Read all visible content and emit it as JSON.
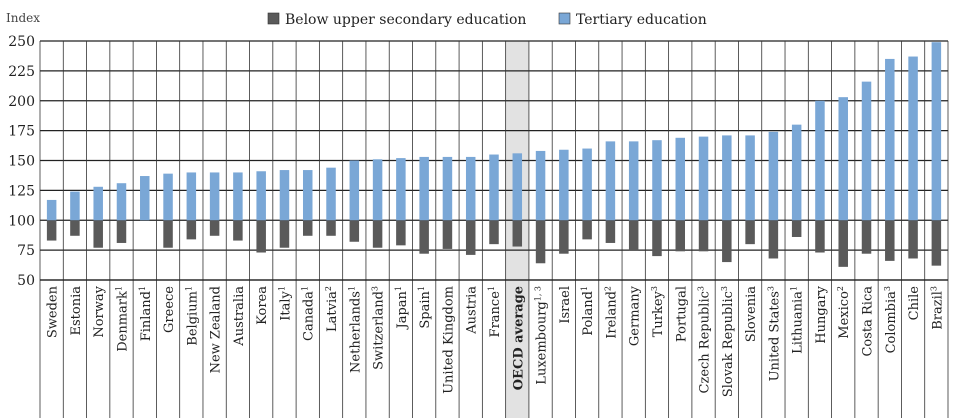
{
  "chart_data": {
    "type": "bar",
    "ylabel": "Index",
    "ylim": [
      50,
      250
    ],
    "yticks": [
      50,
      75,
      100,
      125,
      150,
      175,
      200,
      225,
      250
    ],
    "baseline": 100,
    "grid": true,
    "legend_position": "top",
    "highlight_category": "OECD average",
    "series": [
      {
        "name": "Below upper secondary education",
        "color": "#5a5a5a",
        "values": [
          83,
          87,
          77,
          81,
          null,
          77,
          84,
          87,
          83,
          73,
          77,
          87,
          87,
          82,
          77,
          79,
          72,
          76,
          71,
          80,
          78,
          64,
          72,
          84,
          81,
          75,
          70,
          74,
          74,
          65,
          80,
          68,
          86,
          73,
          61,
          72,
          66,
          68,
          62
        ]
      },
      {
        "name": "Tertiary education",
        "color": "#7aa7d6",
        "values": [
          117,
          124,
          128,
          131,
          137,
          139,
          140,
          140,
          140,
          141,
          142,
          142,
          144,
          150,
          151,
          152,
          153,
          153,
          153,
          155,
          156,
          158,
          159,
          160,
          166,
          166,
          167,
          169,
          170,
          171,
          171,
          174,
          180,
          200,
          203,
          216,
          235,
          237,
          249
        ]
      }
    ],
    "categories": [
      {
        "label": "Sweden",
        "note": ""
      },
      {
        "label": "Estonia",
        "note": ""
      },
      {
        "label": "Norway",
        "note": ""
      },
      {
        "label": "Denmark",
        "note": "1"
      },
      {
        "label": "Finland",
        "note": "1"
      },
      {
        "label": "Greece",
        "note": ""
      },
      {
        "label": "Belgium",
        "note": "1"
      },
      {
        "label": "New Zealand",
        "note": ""
      },
      {
        "label": "Australia",
        "note": ""
      },
      {
        "label": "Korea",
        "note": ""
      },
      {
        "label": "Italy",
        "note": "1"
      },
      {
        "label": "Canada",
        "note": "1"
      },
      {
        "label": "Latvia",
        "note": "2"
      },
      {
        "label": "Netherlands",
        "note": "1"
      },
      {
        "label": "Switzerland",
        "note": "3"
      },
      {
        "label": "Japan",
        "note": "1"
      },
      {
        "label": "Spain",
        "note": "1"
      },
      {
        "label": "United Kingdom",
        "note": ""
      },
      {
        "label": "Austria",
        "note": ""
      },
      {
        "label": "France",
        "note": "1"
      },
      {
        "label": "OECD average",
        "note": ""
      },
      {
        "label": "Luxembourg",
        "note": "1, 3"
      },
      {
        "label": "Israel",
        "note": ""
      },
      {
        "label": "Poland",
        "note": "1"
      },
      {
        "label": "Ireland",
        "note": "2"
      },
      {
        "label": "Germany",
        "note": ""
      },
      {
        "label": "Turkey",
        "note": "3"
      },
      {
        "label": "Portugal",
        "note": ""
      },
      {
        "label": "Czech Republic",
        "note": "3"
      },
      {
        "label": "Slovak Republic",
        "note": "3"
      },
      {
        "label": "Slovenia",
        "note": ""
      },
      {
        "label": "United States",
        "note": "3"
      },
      {
        "label": "Lithuania",
        "note": "1"
      },
      {
        "label": "Hungary",
        "note": ""
      },
      {
        "label": "Mexico",
        "note": "2"
      },
      {
        "label": "Costa Rica",
        "note": ""
      },
      {
        "label": "Colombia",
        "note": "3"
      },
      {
        "label": "Chile",
        "note": ""
      },
      {
        "label": "Brazil",
        "note": "3"
      }
    ]
  }
}
